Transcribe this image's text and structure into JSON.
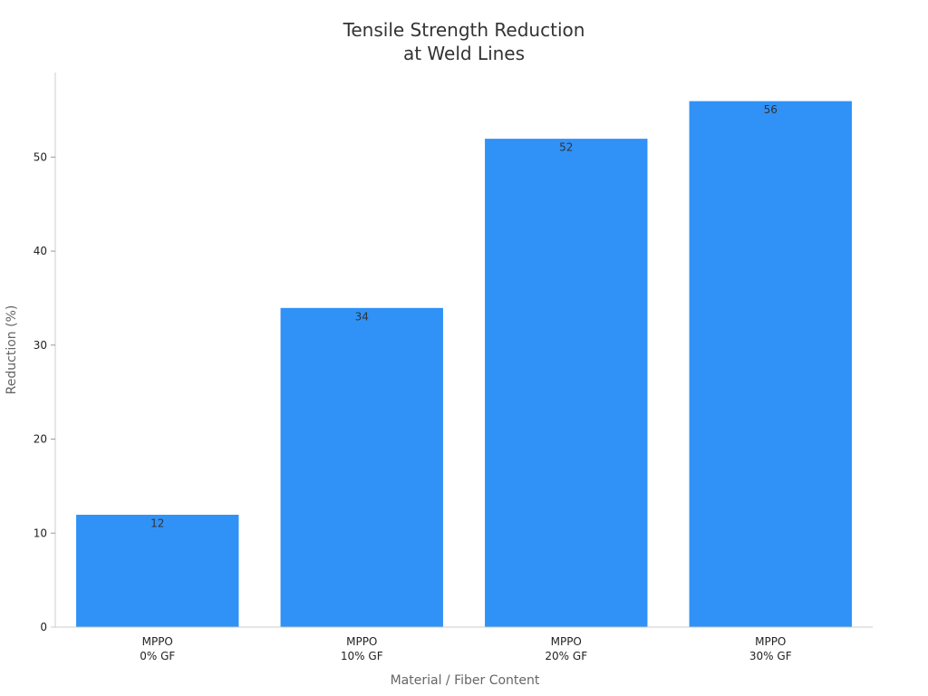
{
  "colors": {
    "bar": "#3092f7",
    "axis": "#cccccc",
    "tick_text": "#222222",
    "label_text": "#666666",
    "value_text": "#333333"
  },
  "chart_data": {
    "type": "bar",
    "title_lines": [
      "Tensile Strength Reduction",
      "at Weld Lines"
    ],
    "xlabel": "Material / Fiber Content",
    "ylabel": "Reduction (%)",
    "categories": [
      [
        "MPPO",
        "0% GF"
      ],
      [
        "MPPO",
        "10% GF"
      ],
      [
        "MPPO",
        "20% GF"
      ],
      [
        "MPPO",
        "30% GF"
      ]
    ],
    "values": [
      12,
      34,
      52,
      56
    ],
    "value_labels": [
      "12",
      "34",
      "52",
      "56"
    ],
    "yticks": [
      0,
      10,
      20,
      30,
      40,
      50
    ],
    "ylim": [
      0,
      59
    ],
    "grid": false
  }
}
